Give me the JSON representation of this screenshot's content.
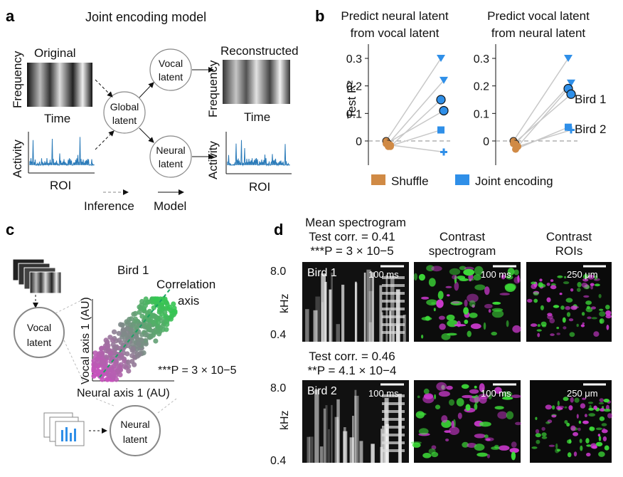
{
  "panels": {
    "a": {
      "letter": "a",
      "title": "Joint encoding model",
      "original_label": "Original",
      "reconstructed_label": "Reconstructed",
      "frequency_label": "Frequency",
      "time_label": "Time",
      "activity_label": "Activity",
      "roi_label": "ROI",
      "global_latent": [
        "Global",
        "latent"
      ],
      "vocal_latent": [
        "Vocal",
        "latent"
      ],
      "neural_latent": [
        "Neural",
        "latent"
      ],
      "legend_inference": "Inference",
      "legend_model": "Model"
    },
    "b": {
      "letter": "b",
      "title_left": [
        "Predict neural latent",
        "from vocal latent"
      ],
      "title_right": [
        "Predict vocal latent",
        "from neural latent"
      ],
      "ylabel": "Test R²",
      "yticks": [
        "0.3",
        "0.2",
        "0.1",
        "0"
      ],
      "bird1_label": "Bird 1",
      "bird2_label": "Bird 2",
      "legend_shuffle": "Shuffle",
      "legend_joint": "Joint encoding",
      "shuffle_color": "#d08a45",
      "joint_color": "#2f8fe8"
    },
    "c": {
      "letter": "c",
      "title": "Bird 1",
      "correlation_axis_label": [
        "Correlation",
        "axis"
      ],
      "xlabel": "Neural axis 1 (AU)",
      "ylabel": "Vocal axis 1 (AU)",
      "pvalue": "***P = 3 × 10−5",
      "vocal_latent": [
        "Vocal",
        "latent"
      ],
      "neural_latent": [
        "Neural",
        "latent"
      ]
    },
    "d": {
      "letter": "d",
      "col1_header": [
        "Mean spectrogram",
        "Test corr. = 0.41",
        "***P = 3 × 10−5"
      ],
      "col2_header": [
        "Contrast",
        "spectrogram"
      ],
      "col3_header": [
        "Contrast",
        "ROIs"
      ],
      "row2_header": [
        "Test corr. = 0.46",
        "**P = 4.1 × 10−4"
      ],
      "bird1": "Bird 1",
      "bird2": "Bird 2",
      "scale_time": "100 ms",
      "scale_space": "250 μm",
      "khz_label": "kHz",
      "khz_top": "8.0",
      "khz_bottom": "0.4"
    }
  },
  "chart_data": [
    {
      "type": "scatter",
      "title": "Predict neural latent from vocal latent",
      "ylabel": "Test R²",
      "ylim": [
        -0.05,
        0.33
      ],
      "series": [
        {
          "name": "Shuffle",
          "x": [
            0,
            0,
            0,
            0,
            0,
            0
          ],
          "y": [
            0.0,
            -0.01,
            -0.02,
            -0.01,
            -0.02,
            -0.015
          ]
        },
        {
          "name": "Joint encoding",
          "x": [
            1,
            1,
            1,
            1,
            1,
            1
          ],
          "y": [
            0.3,
            0.22,
            0.15,
            0.11,
            0.04,
            -0.04
          ]
        }
      ]
    },
    {
      "type": "scatter",
      "title": "Predict vocal latent from neural latent",
      "ylabel": "Test R²",
      "ylim": [
        -0.05,
        0.33
      ],
      "series": [
        {
          "name": "Shuffle",
          "x": [
            0,
            0,
            0,
            0,
            0,
            0
          ],
          "y": [
            0.0,
            -0.01,
            -0.02,
            -0.01,
            -0.03,
            -0.02
          ]
        },
        {
          "name": "Joint encoding",
          "x": [
            1,
            1,
            1,
            1,
            1,
            1
          ],
          "y": [
            0.3,
            0.21,
            0.19,
            0.17,
            0.05,
            0.04
          ]
        }
      ]
    }
  ]
}
